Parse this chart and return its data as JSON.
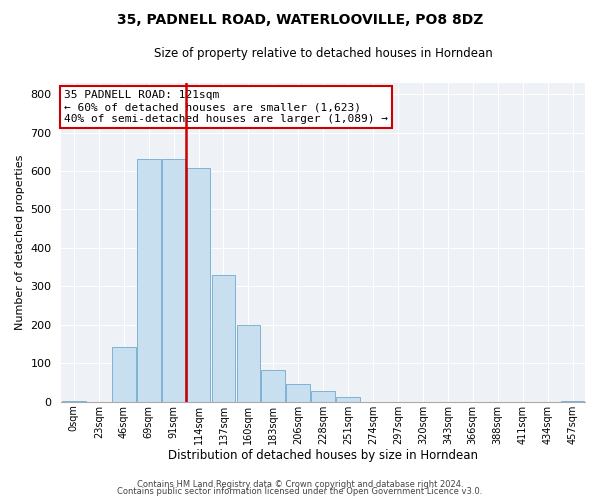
{
  "title": "35, PADNELL ROAD, WATERLOOVILLE, PO8 8DZ",
  "subtitle": "Size of property relative to detached houses in Horndean",
  "xlabel": "Distribution of detached houses by size in Horndean",
  "ylabel": "Number of detached properties",
  "bin_labels": [
    "0sqm",
    "23sqm",
    "46sqm",
    "69sqm",
    "91sqm",
    "114sqm",
    "137sqm",
    "160sqm",
    "183sqm",
    "206sqm",
    "228sqm",
    "251sqm",
    "274sqm",
    "297sqm",
    "320sqm",
    "343sqm",
    "366sqm",
    "388sqm",
    "411sqm",
    "434sqm",
    "457sqm"
  ],
  "bar_heights": [
    3,
    0,
    143,
    632,
    630,
    608,
    330,
    200,
    83,
    47,
    27,
    12,
    0,
    0,
    0,
    0,
    0,
    0,
    0,
    0,
    3
  ],
  "bar_color": "#c8dff0",
  "bar_edge_color": "#7fb3d3",
  "marker_x_index": 5,
  "marker_color": "#cc0000",
  "ylim": [
    0,
    830
  ],
  "xlim_min": -0.5,
  "annotation_line1": "35 PADNELL ROAD: 121sqm",
  "annotation_line2": "← 60% of detached houses are smaller (1,623)",
  "annotation_line3": "40% of semi-detached houses are larger (1,089) →",
  "footer1": "Contains HM Land Registry data © Crown copyright and database right 2024.",
  "footer2": "Contains public sector information licensed under the Open Government Licence v3.0.",
  "bg_color": "#eef2f7",
  "grid_color": "white",
  "title_fontsize": 10,
  "subtitle_fontsize": 8.5,
  "ylabel_fontsize": 8,
  "xlabel_fontsize": 8.5,
  "ytick_fontsize": 8,
  "xtick_fontsize": 7,
  "annot_fontsize": 8,
  "footer_fontsize": 6
}
